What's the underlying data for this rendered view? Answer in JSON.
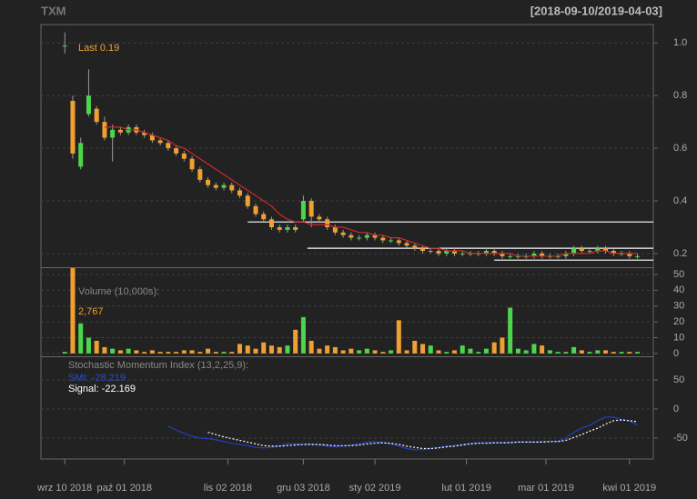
{
  "chart_data": {
    "type": "candlestick",
    "title": "TXM",
    "date_range": "[2018-09-10/2019-04-03]",
    "last_label": "Last 0.19",
    "volume_label": "Volume (10,000s):",
    "volume_last": "2,767",
    "smi_title": "Stochastic Momentum Index (13,2,25,9):",
    "smi_label": "SMI: -28.219",
    "signal_label": "Signal: -22.169",
    "up_color": "#4cd64c",
    "down_color": "#f0a030",
    "ma_color": "#cc2a2a",
    "smi_color": "#2040c0",
    "signal_color": "#ffffff",
    "grid": true,
    "x": [
      0,
      2,
      4,
      6,
      8,
      10,
      12,
      14,
      16,
      18,
      20,
      22,
      24,
      26,
      28,
      30,
      32,
      34,
      36,
      38,
      40,
      42,
      44,
      46,
      48,
      50,
      52,
      54,
      56,
      58,
      60,
      62,
      64,
      66,
      68,
      70,
      72,
      74,
      76,
      78,
      80,
      82,
      84,
      86,
      88,
      90,
      92,
      94,
      96,
      98,
      100,
      102,
      104,
      106,
      108,
      110,
      112,
      114,
      116,
      118,
      120,
      122,
      124,
      126,
      128,
      130,
      132,
      134,
      136,
      138,
      140,
      142,
      144
    ],
    "open": [
      0.99,
      0.78,
      0.53,
      0.73,
      0.75,
      0.7,
      0.64,
      0.67,
      0.66,
      0.68,
      0.66,
      0.65,
      0.63,
      0.62,
      0.6,
      0.58,
      0.56,
      0.52,
      0.48,
      0.46,
      0.45,
      0.46,
      0.44,
      0.42,
      0.38,
      0.35,
      0.33,
      0.3,
      0.29,
      0.3,
      0.33,
      0.4,
      0.34,
      0.33,
      0.3,
      0.28,
      0.27,
      0.26,
      0.26,
      0.27,
      0.26,
      0.25,
      0.25,
      0.24,
      0.23,
      0.22,
      0.21,
      0.21,
      0.2,
      0.21,
      0.2,
      0.2,
      0.2,
      0.2,
      0.21,
      0.2,
      0.19,
      0.19,
      0.19,
      0.19,
      0.2,
      0.19,
      0.19,
      0.19,
      0.2,
      0.22,
      0.21,
      0.21,
      0.22,
      0.21,
      0.2,
      0.2,
      0.19
    ],
    "high": [
      1.04,
      0.8,
      0.64,
      0.9,
      0.76,
      0.72,
      0.69,
      0.68,
      0.69,
      0.69,
      0.67,
      0.66,
      0.64,
      0.63,
      0.61,
      0.59,
      0.57,
      0.53,
      0.49,
      0.47,
      0.47,
      0.47,
      0.45,
      0.43,
      0.39,
      0.36,
      0.34,
      0.31,
      0.31,
      0.31,
      0.42,
      0.41,
      0.35,
      0.34,
      0.31,
      0.29,
      0.28,
      0.27,
      0.28,
      0.28,
      0.27,
      0.26,
      0.26,
      0.25,
      0.24,
      0.23,
      0.22,
      0.22,
      0.22,
      0.22,
      0.21,
      0.21,
      0.21,
      0.22,
      0.22,
      0.21,
      0.2,
      0.2,
      0.2,
      0.21,
      0.21,
      0.2,
      0.2,
      0.21,
      0.23,
      0.23,
      0.22,
      0.23,
      0.23,
      0.22,
      0.21,
      0.21,
      0.2
    ],
    "low": [
      0.96,
      0.56,
      0.52,
      0.72,
      0.69,
      0.63,
      0.55,
      0.65,
      0.65,
      0.65,
      0.64,
      0.62,
      0.61,
      0.59,
      0.57,
      0.55,
      0.51,
      0.47,
      0.45,
      0.44,
      0.44,
      0.43,
      0.41,
      0.37,
      0.34,
      0.32,
      0.29,
      0.28,
      0.28,
      0.28,
      0.32,
      0.3,
      0.32,
      0.29,
      0.27,
      0.26,
      0.25,
      0.25,
      0.25,
      0.25,
      0.24,
      0.24,
      0.23,
      0.22,
      0.21,
      0.2,
      0.2,
      0.19,
      0.19,
      0.19,
      0.19,
      0.19,
      0.19,
      0.19,
      0.19,
      0.18,
      0.18,
      0.18,
      0.18,
      0.18,
      0.18,
      0.18,
      0.18,
      0.18,
      0.19,
      0.2,
      0.2,
      0.2,
      0.2,
      0.19,
      0.19,
      0.18,
      0.18
    ],
    "close": [
      0.99,
      0.58,
      0.62,
      0.8,
      0.7,
      0.64,
      0.67,
      0.66,
      0.68,
      0.66,
      0.65,
      0.63,
      0.62,
      0.6,
      0.58,
      0.56,
      0.52,
      0.48,
      0.46,
      0.45,
      0.46,
      0.44,
      0.42,
      0.38,
      0.35,
      0.33,
      0.3,
      0.29,
      0.3,
      0.29,
      0.4,
      0.34,
      0.33,
      0.3,
      0.28,
      0.27,
      0.26,
      0.26,
      0.27,
      0.26,
      0.25,
      0.25,
      0.24,
      0.23,
      0.22,
      0.21,
      0.21,
      0.2,
      0.21,
      0.2,
      0.2,
      0.2,
      0.2,
      0.21,
      0.2,
      0.19,
      0.19,
      0.19,
      0.19,
      0.2,
      0.19,
      0.19,
      0.19,
      0.2,
      0.22,
      0.21,
      0.21,
      0.22,
      0.21,
      0.2,
      0.2,
      0.19,
      0.19
    ],
    "ma": [
      null,
      null,
      null,
      null,
      null,
      0.68,
      0.68,
      0.68,
      0.67,
      0.67,
      0.66,
      0.65,
      0.64,
      0.63,
      0.61,
      0.6,
      0.58,
      0.56,
      0.54,
      0.52,
      0.5,
      0.48,
      0.46,
      0.44,
      0.42,
      0.4,
      0.38,
      0.35,
      0.33,
      0.32,
      0.32,
      0.31,
      0.31,
      0.31,
      0.3,
      0.3,
      0.29,
      0.28,
      0.28,
      0.27,
      0.27,
      0.26,
      0.26,
      0.25,
      0.24,
      0.23,
      0.22,
      0.22,
      0.21,
      0.21,
      0.21,
      0.2,
      0.2,
      0.2,
      0.2,
      0.2,
      0.2,
      0.19,
      0.19,
      0.19,
      0.19,
      0.19,
      0.19,
      0.2,
      0.2,
      0.2,
      0.2,
      0.21,
      0.21,
      0.2,
      0.2,
      0.2,
      0.2
    ],
    "volume": [
      1,
      54,
      19,
      10,
      8,
      4,
      3,
      2,
      3,
      2,
      1,
      2,
      1,
      1,
      1,
      2,
      2,
      1,
      3,
      1,
      1,
      1,
      6,
      5,
      3,
      7,
      5,
      4,
      5,
      15,
      23,
      8,
      3,
      5,
      4,
      2,
      3,
      2,
      3,
      2,
      1,
      2,
      21,
      2,
      8,
      6,
      5,
      2,
      1,
      2,
      5,
      3,
      1,
      3,
      7,
      10,
      29,
      3,
      2,
      6,
      5,
      2,
      1,
      1,
      4,
      2,
      1,
      2,
      2,
      1,
      1,
      1,
      1
    ],
    "smi": [
      null,
      null,
      null,
      null,
      null,
      null,
      null,
      null,
      null,
      null,
      null,
      null,
      null,
      -30,
      -36,
      -42,
      -47,
      -50,
      -51,
      -53,
      -56,
      -59,
      -61,
      -63,
      -66,
      -67,
      -66,
      -63,
      -60,
      -60,
      -61,
      -60,
      -62,
      -64,
      -65,
      -64,
      -62,
      -60,
      -57,
      -56,
      -58,
      -60,
      -64,
      -68,
      -70,
      -70,
      -68,
      -66,
      -64,
      -63,
      -61,
      -59,
      -58,
      -58,
      -58,
      -58,
      -57,
      -57,
      -57,
      -57,
      -56,
      -56,
      -55,
      -50,
      -40,
      -33,
      -28,
      -20,
      -14,
      -14,
      -18,
      -20,
      -28
    ],
    "signal": [
      null,
      null,
      null,
      null,
      null,
      null,
      null,
      null,
      null,
      null,
      null,
      null,
      null,
      null,
      null,
      null,
      null,
      null,
      -40,
      -44,
      -48,
      -51,
      -54,
      -57,
      -60,
      -63,
      -64,
      -64,
      -63,
      -62,
      -61,
      -61,
      -61,
      -62,
      -63,
      -63,
      -63,
      -62,
      -60,
      -59,
      -58,
      -59,
      -61,
      -64,
      -66,
      -68,
      -68,
      -67,
      -65,
      -64,
      -62,
      -60,
      -59,
      -59,
      -58,
      -58,
      -58,
      -57,
      -57,
      -57,
      -57,
      -56,
      -56,
      -54,
      -49,
      -44,
      -38,
      -33,
      -26,
      -20,
      -19,
      -20,
      -22
    ],
    "hlines": [
      {
        "value": 0.32,
        "start": 46
      },
      {
        "value": 0.22,
        "start": 61
      },
      {
        "value": 0.175,
        "start": 108
      }
    ],
    "xlim": [
      -6,
      148
    ],
    "xticks": [
      {
        "value": 0,
        "label": "wrz 10 2018"
      },
      {
        "value": 15,
        "label": "paź 01 2018"
      },
      {
        "value": 41,
        "label": "lis 02 2018"
      },
      {
        "value": 60,
        "label": "gru 03 2018"
      },
      {
        "value": 78,
        "label": "sty 02 2019"
      },
      {
        "value": 101,
        "label": "lut 01 2019"
      },
      {
        "value": 121,
        "label": "mar 01 2019"
      },
      {
        "value": 142,
        "label": "kwi 01 2019"
      }
    ],
    "ylim": [
      0.148,
      1.07
    ],
    "yticks": [
      0.2,
      0.4,
      0.6,
      0.8,
      {
        "value": 1,
        "label": "1.0"
      }
    ],
    "volume_ylim": [
      -1.8,
      54
    ],
    "volume_yticks": [
      0,
      10,
      20,
      30,
      40,
      50
    ],
    "smi_ylim": [
      -86,
      89
    ],
    "smi_yticks": [
      -50,
      0,
      50
    ]
  }
}
